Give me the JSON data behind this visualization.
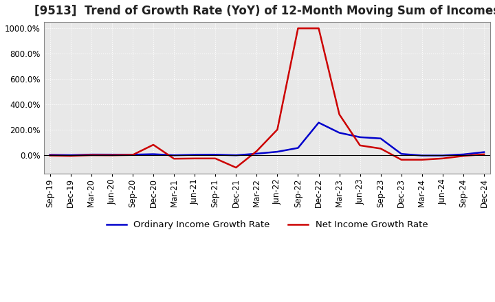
{
  "title": "[9513]  Trend of Growth Rate (YoY) of 12-Month Moving Sum of Incomes",
  "x_labels": [
    "Sep-19",
    "Dec-19",
    "Mar-20",
    "Jun-20",
    "Sep-20",
    "Dec-20",
    "Mar-21",
    "Jun-21",
    "Sep-21",
    "Dec-21",
    "Mar-22",
    "Jun-22",
    "Sep-22",
    "Dec-22",
    "Mar-23",
    "Jun-23",
    "Sep-23",
    "Dec-23",
    "Mar-24",
    "Jun-24",
    "Sep-24",
    "Dec-24"
  ],
  "ordinary_income": [
    1.0,
    -2.0,
    3.0,
    2.5,
    2.0,
    6.0,
    -3.0,
    1.0,
    2.0,
    -3.0,
    10.0,
    25.0,
    55.0,
    255.0,
    175.0,
    140.0,
    130.0,
    8.0,
    -5.0,
    -5.0,
    4.0,
    22.0
  ],
  "net_income": [
    -5.0,
    -8.0,
    -2.0,
    -3.0,
    0.0,
    80.0,
    -30.0,
    -28.0,
    -28.0,
    -100.0,
    30.0,
    200.0,
    1000.0,
    1000.0,
    320.0,
    75.0,
    50.0,
    -38.0,
    -38.0,
    -28.0,
    -8.0,
    5.0
  ],
  "ordinary_color": "#0000cc",
  "net_color": "#cc0000",
  "background_color": "#ffffff",
  "plot_bg_color": "#e8e8e8",
  "grid_color": "#ffffff",
  "ylim_min": -150,
  "ylim_max": 1050,
  "yticks": [
    0.0,
    200.0,
    400.0,
    600.0,
    800.0,
    1000.0
  ],
  "ytick_labels": [
    "0.0%",
    "200.0%",
    "400.0%",
    "600.0%",
    "800.0%",
    "1000.0%"
  ],
  "legend_ordinary": "Ordinary Income Growth Rate",
  "legend_net": "Net Income Growth Rate",
  "title_fontsize": 12,
  "axis_fontsize": 8.5,
  "legend_fontsize": 9.5
}
